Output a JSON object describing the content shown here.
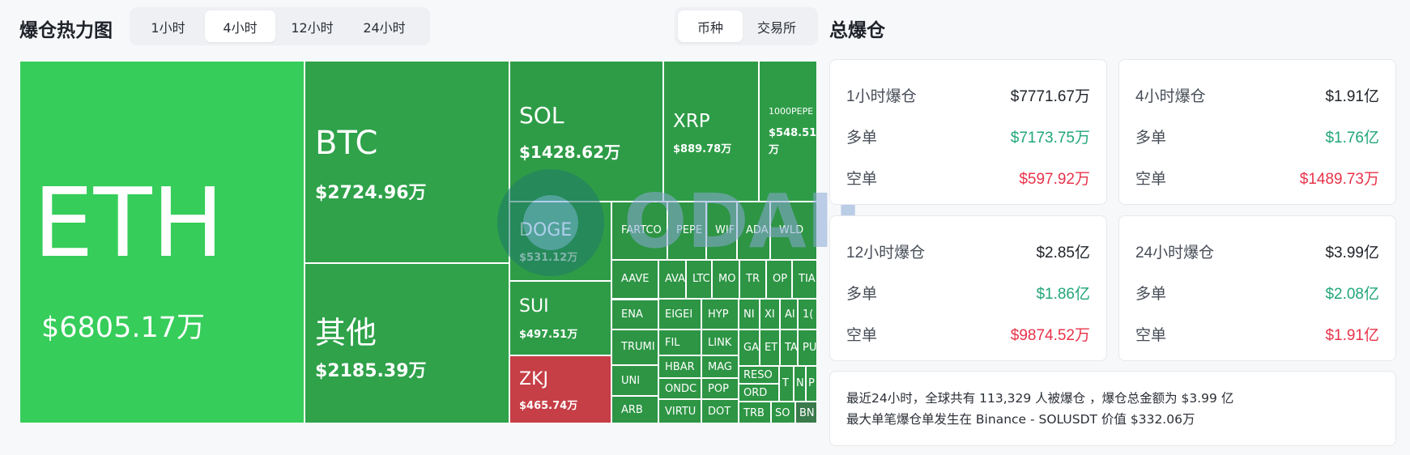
{
  "header": {
    "title": "爆仓热力图",
    "time_tabs": [
      {
        "label": "1小时",
        "active": false
      },
      {
        "label": "4小时",
        "active": true
      },
      {
        "label": "12小时",
        "active": false
      },
      {
        "label": "24小时",
        "active": false
      }
    ],
    "type_tabs": [
      {
        "label": "币种",
        "active": true
      },
      {
        "label": "交易所",
        "active": false
      }
    ]
  },
  "heatmap": {
    "cells": [
      {
        "symbol": "ETH",
        "value": "$6805.17万"
      },
      {
        "symbol": "BTC",
        "value": "$2724.96万"
      },
      {
        "symbol": "其他",
        "value": "$2185.39万"
      },
      {
        "symbol": "SOL",
        "value": "$1428.62万"
      },
      {
        "symbol": "XRP",
        "value": "$889.78万"
      },
      {
        "symbol": "1000PEPE",
        "value": "$548.51万"
      },
      {
        "symbol": "DOGE",
        "value": "$531.12万"
      },
      {
        "symbol": "SUI",
        "value": "$497.51万"
      },
      {
        "symbol": "ZKJ",
        "value": "$465.74万"
      }
    ],
    "small_cells": [
      "FARTCO",
      "PEPE",
      "WIF",
      "ADA",
      "WLD",
      "AAVE",
      "AVA",
      "LTC",
      "MO",
      "TR",
      "OP",
      "TIA",
      "ENA",
      "EIGEI",
      "HYP",
      "NI",
      "XI",
      "AI",
      "1(",
      "FIL",
      "LINK",
      "GA",
      "ET",
      "TA",
      "PU",
      "TRUMI",
      "HBAR",
      "MAG",
      "RESO",
      "UNI",
      "ONDC",
      "POP",
      "ORD",
      "T",
      "N",
      "P",
      "ARB",
      "VIRTU",
      "DOT",
      "TRB",
      "SO",
      "BN"
    ],
    "colors": {
      "top": "#36cd5a",
      "mid": "#2e9c47",
      "loss": "#c63e46"
    }
  },
  "summary_panel": {
    "title": "总爆仓",
    "cards": [
      {
        "label": "1小时爆仓",
        "total": "$7771.67万",
        "long_label": "多单",
        "long": "$7173.75万",
        "short_label": "空单",
        "short": "$597.92万"
      },
      {
        "label": "4小时爆仓",
        "total": "$1.91亿",
        "long_label": "多单",
        "long": "$1.76亿",
        "short_label": "空单",
        "short": "$1489.73万"
      },
      {
        "label": "12小时爆仓",
        "total": "$2.85亿",
        "long_label": "多单",
        "long": "$1.86亿",
        "short_label": "空单",
        "short": "$9874.52万"
      },
      {
        "label": "24小时爆仓",
        "total": "$3.99亿",
        "long_label": "多单",
        "long": "$2.08亿",
        "short_label": "空单",
        "short": "$1.91亿"
      }
    ],
    "line1": "最近24小时，全球共有 113,329 人被爆仓 ，爆仓总金额为 $3.99 亿",
    "line2": "最大单笔爆仓单发生在 Binance - SOLUSDT 价值 $332.06万"
  },
  "watermark": {
    "text": "ODAILY"
  }
}
